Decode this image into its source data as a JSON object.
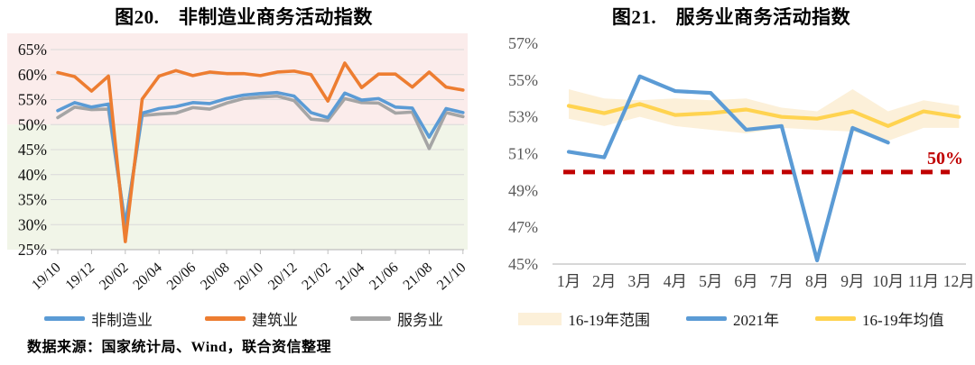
{
  "source_note": "数据来源：国家统计局、Wind，联合资信整理",
  "chart_data": [
    {
      "type": "line",
      "title": "图20.　非制造业商务活动指数",
      "ylabel": "",
      "xlabel": "",
      "ylim": [
        25,
        65
      ],
      "yticks": [
        {
          "v": 65,
          "label": "65%"
        },
        {
          "v": 60,
          "label": "60%"
        },
        {
          "v": 55,
          "label": "55%"
        },
        {
          "v": 50,
          "label": "50%"
        },
        {
          "v": 45,
          "label": "45%"
        },
        {
          "v": 40,
          "label": "40%"
        },
        {
          "v": 35,
          "label": "35%"
        },
        {
          "v": 30,
          "label": "30%"
        },
        {
          "v": 25,
          "label": "25%"
        }
      ],
      "categories": [
        "19/10",
        "19/11",
        "19/12",
        "20/01",
        "20/02",
        "20/03",
        "20/04",
        "20/05",
        "20/06",
        "20/07",
        "20/08",
        "20/09",
        "20/10",
        "20/11",
        "20/12",
        "21/01",
        "21/02",
        "21/03",
        "21/04",
        "21/05",
        "21/06",
        "21/07",
        "21/08",
        "21/09",
        "21/10"
      ],
      "xticks": [
        "19/10",
        "19/12",
        "20/02",
        "20/04",
        "20/06",
        "20/08",
        "20/10",
        "20/12",
        "21/02",
        "21/04",
        "21/06",
        "21/08",
        "21/10"
      ],
      "plot_bg": {
        "above_threshold": "#FBECEB",
        "below_threshold": "#F1F5E8",
        "threshold": 50
      },
      "gridline_color": "#DADADA",
      "axis_color": "#BFBFBF",
      "tick_label_color": "#111111",
      "grid": true,
      "legend_position": "bottom",
      "series": [
        {
          "name": "非制造业",
          "color": "#5B9BD5",
          "values": [
            52.8,
            54.4,
            53.5,
            54.1,
            29.6,
            52.3,
            53.2,
            53.6,
            54.4,
            54.2,
            55.2,
            55.9,
            56.2,
            56.4,
            55.7,
            52.4,
            51.4,
            56.3,
            54.9,
            55.2,
            53.5,
            53.3,
            47.5,
            53.2,
            52.4
          ]
        },
        {
          "name": "建筑业",
          "color": "#ED7D31",
          "values": [
            60.4,
            59.6,
            56.7,
            59.7,
            26.6,
            55.1,
            59.7,
            60.8,
            59.8,
            60.5,
            60.2,
            60.2,
            59.8,
            60.5,
            60.7,
            60.0,
            54.7,
            62.3,
            57.4,
            60.1,
            60.1,
            57.5,
            60.5,
            57.5,
            56.9
          ]
        },
        {
          "name": "服务业",
          "color": "#A5A5A5",
          "values": [
            51.4,
            53.5,
            53.0,
            53.1,
            30.1,
            51.8,
            52.1,
            52.3,
            53.4,
            53.1,
            54.3,
            55.2,
            55.5,
            55.7,
            54.8,
            51.1,
            50.8,
            55.2,
            54.4,
            54.3,
            52.3,
            52.5,
            45.2,
            52.4,
            51.6
          ]
        }
      ]
    },
    {
      "type": "line",
      "title": "图21.　服务业商务活动指数",
      "ylabel": "",
      "xlabel": "",
      "ylim": [
        45,
        57
      ],
      "yticks": [
        {
          "v": 57,
          "label": "57%"
        },
        {
          "v": 55,
          "label": "55%"
        },
        {
          "v": 53,
          "label": "53%"
        },
        {
          "v": 51,
          "label": "51%"
        },
        {
          "v": 49,
          "label": "49%"
        },
        {
          "v": 47,
          "label": "47%"
        },
        {
          "v": 45,
          "label": "45%"
        }
      ],
      "categories": [
        "1月",
        "2月",
        "3月",
        "4月",
        "5月",
        "6月",
        "7月",
        "8月",
        "9月",
        "10月",
        "11月",
        "12月"
      ],
      "axis_color": "#BFBFBF",
      "tick_label_color": "#404040",
      "grid": false,
      "legend_position": "bottom",
      "ref_line": {
        "value": 50,
        "label": "50%",
        "color": "#C00000"
      },
      "series": [
        {
          "name": "16-19年范围",
          "type": "band",
          "color": "#FCF0D9",
          "upper": [
            54.5,
            54.0,
            53.9,
            54.0,
            53.9,
            54.0,
            53.5,
            53.3,
            54.5,
            53.3,
            53.9,
            53.6
          ],
          "lower": [
            52.9,
            52.5,
            53.0,
            52.5,
            52.3,
            52.1,
            52.4,
            52.3,
            52.2,
            51.7,
            52.4,
            52.4
          ]
        },
        {
          "name": "2021年",
          "type": "line",
          "color": "#5B9BD5",
          "values": [
            51.1,
            50.8,
            55.2,
            54.4,
            54.3,
            52.3,
            52.5,
            45.2,
            52.4,
            51.6
          ]
        },
        {
          "name": "16-19年均值",
          "type": "line",
          "color": "#FFD350",
          "values": [
            53.6,
            53.2,
            53.7,
            53.1,
            53.2,
            53.4,
            53.0,
            52.9,
            53.3,
            52.5,
            53.3,
            53.0
          ]
        }
      ]
    }
  ]
}
